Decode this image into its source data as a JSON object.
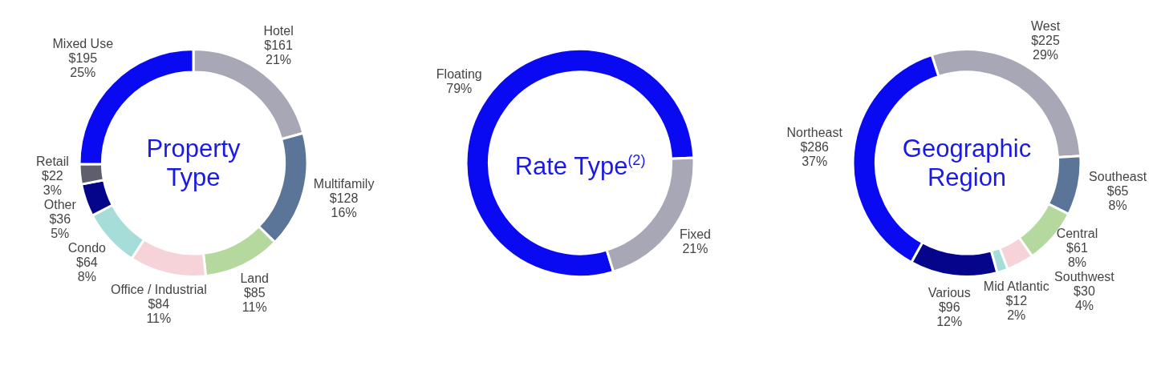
{
  "chart_data": [
    {
      "type": "donut",
      "title": "Property Type",
      "legend": false,
      "categories": [
        "Hotel",
        "Multifamily",
        "Land",
        "Office / Industrial",
        "Condo",
        "Other",
        "Retail",
        "Mixed Use"
      ],
      "values": [
        161,
        128,
        85,
        84,
        64,
        36,
        22,
        195
      ],
      "value_labels": [
        "$161\n21%",
        "$128\n16%",
        "$85\n11%",
        "$84\n11%",
        "$64\n8%",
        "$36\n5%",
        "$22\n3%",
        "$195\n25%"
      ],
      "colors": [
        "#a7a7b5",
        "#5b7599",
        "#b5d89e",
        "#f5d3d8",
        "#a6ddd8",
        "#05058c",
        "#5e5e6c",
        "#0a0af2"
      ]
    },
    {
      "type": "donut",
      "title": "Rate Type$^{(2)}$",
      "legend": false,
      "categories": [
        "Floating",
        "Fixed"
      ],
      "values": [
        79,
        21
      ],
      "value_labels": [
        "79%",
        "21%"
      ],
      "colors": [
        "#0a0af2",
        "#a7a7b5"
      ]
    },
    {
      "type": "donut",
      "title": "Geographic Region",
      "legend": false,
      "categories": [
        "West",
        "Southeast",
        "Central",
        "Southwest",
        "Mid Atlantic",
        "Various",
        "Northeast"
      ],
      "values": [
        225,
        65,
        61,
        30,
        12,
        96,
        286
      ],
      "value_labels": [
        "$225\n29%",
        "$65\n8%",
        "$61\n8%",
        "$30\n4%",
        "$12\n2%",
        "$96\n12%",
        "$286\n37%"
      ],
      "colors": [
        "#a7a7b5",
        "#5b7599",
        "#b5d89e",
        "#f5d3d8",
        "#a6ddd8",
        "#05058c",
        "#0a0af2"
      ]
    }
  ]
}
